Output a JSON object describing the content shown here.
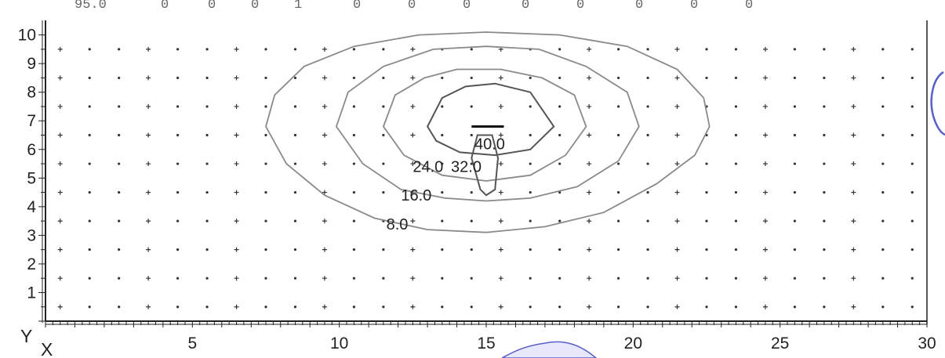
{
  "top_row_text": [
    "95.0",
    "0",
    "0",
    "0",
    "1",
    "0",
    "0",
    "0",
    "0",
    "0",
    "0",
    "0",
    "0"
  ],
  "colors": {
    "axis": "#222222",
    "grid_marker": "#333333",
    "contour_light": "#8a8a8a",
    "contour_dark": "#555555",
    "stamp": "#5a5fc8",
    "stamp_fill": "#e7e8fb"
  },
  "chart_data": {
    "type": "contour",
    "title": "",
    "xlabel": "X",
    "ylabel": "Y",
    "xlim": [
      0,
      30
    ],
    "ylim": [
      0,
      10.4
    ],
    "x_ticks": [
      5,
      10,
      15,
      20,
      25,
      30
    ],
    "y_ticks": [
      1,
      2,
      3,
      4,
      5,
      6,
      7,
      8,
      9,
      10
    ],
    "grid_points": {
      "x_start": 0.5,
      "x_end": 29.5,
      "x_step": 1,
      "y_start": 0.5,
      "y_end": 9.5,
      "y_step": 1
    },
    "peak_marker": {
      "x": [
        14.5,
        15.6
      ],
      "y": 6.8
    },
    "contours": [
      {
        "level": "8.0",
        "label_at": [
          11.6,
          3.4
        ],
        "points": [
          [
            7.5,
            6.8
          ],
          [
            7.8,
            7.9
          ],
          [
            8.8,
            8.9
          ],
          [
            10.5,
            9.6
          ],
          [
            12.7,
            10.0
          ],
          [
            15,
            10.1
          ],
          [
            17.5,
            10.0
          ],
          [
            19.8,
            9.6
          ],
          [
            21.5,
            8.8
          ],
          [
            22.4,
            7.8
          ],
          [
            22.6,
            6.8
          ],
          [
            22.1,
            5.8
          ],
          [
            20.8,
            4.8
          ],
          [
            19,
            3.8
          ],
          [
            17,
            3.3
          ],
          [
            15,
            3.1
          ],
          [
            13,
            3.2
          ],
          [
            11.2,
            3.6
          ],
          [
            9.5,
            4.4
          ],
          [
            8.2,
            5.5
          ],
          [
            7.5,
            6.8
          ]
        ]
      },
      {
        "level": "16.0",
        "label_at": [
          12.1,
          4.4
        ],
        "points": [
          [
            9.9,
            6.8
          ],
          [
            10.3,
            8.0
          ],
          [
            11.5,
            8.9
          ],
          [
            13.2,
            9.5
          ],
          [
            15,
            9.6
          ],
          [
            16.8,
            9.5
          ],
          [
            18.4,
            8.9
          ],
          [
            19.8,
            8.0
          ],
          [
            20.2,
            6.8
          ],
          [
            19.5,
            5.6
          ],
          [
            18.1,
            4.7
          ],
          [
            16.5,
            4.3
          ],
          [
            15,
            4.2
          ],
          [
            13.6,
            4.3
          ],
          [
            12.1,
            4.6
          ],
          [
            10.8,
            5.5
          ],
          [
            9.9,
            6.8
          ]
        ]
      },
      {
        "level": "24.0",
        "label_at": [
          12.5,
          5.4
        ],
        "points": [
          [
            11.5,
            6.8
          ],
          [
            11.9,
            7.9
          ],
          [
            12.9,
            8.5
          ],
          [
            14,
            8.8
          ],
          [
            15.5,
            8.8
          ],
          [
            16.9,
            8.5
          ],
          [
            18,
            7.9
          ],
          [
            18.4,
            6.8
          ],
          [
            17.7,
            5.8
          ],
          [
            16.5,
            5.1
          ],
          [
            15,
            4.9
          ],
          [
            13.5,
            5.1
          ],
          [
            12.2,
            5.8
          ],
          [
            11.5,
            6.8
          ]
        ]
      },
      {
        "level": "32.0",
        "label_at": [
          13.8,
          5.4
        ],
        "points": [
          [
            14.5,
            5.7
          ],
          [
            14.8,
            4.6
          ],
          [
            15,
            4.4
          ],
          [
            15.3,
            4.6
          ],
          [
            15.4,
            5.7
          ],
          [
            15.2,
            6.5
          ],
          [
            14.7,
            6.5
          ],
          [
            14.5,
            5.7
          ]
        ]
      },
      {
        "level": "40.0",
        "label_at": [
          14.6,
          6.2
        ],
        "points": [
          [
            13,
            6.8
          ],
          [
            13.5,
            7.8
          ],
          [
            14.3,
            8.2
          ],
          [
            15.3,
            8.3
          ],
          [
            16.5,
            8.0
          ],
          [
            17.3,
            6.8
          ],
          [
            16.5,
            6.0
          ],
          [
            15.3,
            5.8
          ],
          [
            14.1,
            5.9
          ],
          [
            13.3,
            6.3
          ],
          [
            13,
            6.8
          ]
        ]
      }
    ]
  }
}
